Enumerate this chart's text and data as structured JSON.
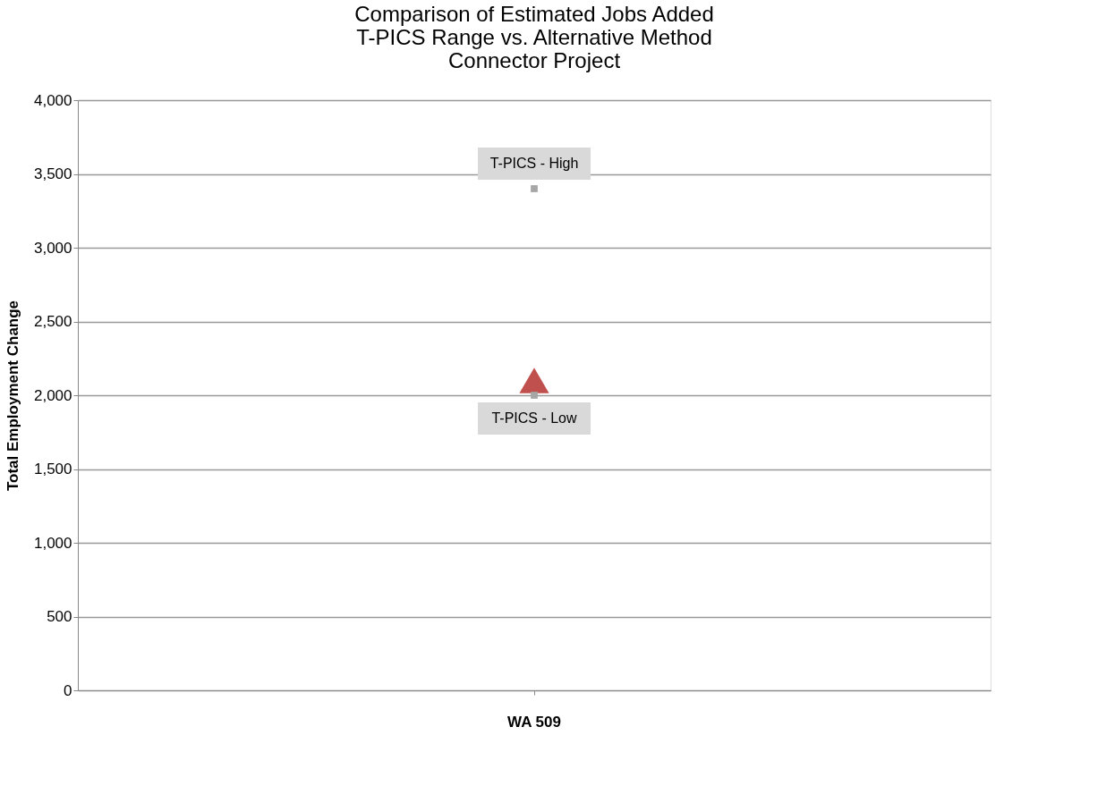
{
  "chart_data": {
    "type": "scatter",
    "title": [
      "Comparison of Estimated Jobs Added",
      "T-PICS Range vs. Alternative Method",
      "Connector Project"
    ],
    "ylabel": "Total Employment Change",
    "categories": [
      "WA 509"
    ],
    "series": [
      {
        "name": "T-PICS - High",
        "color": "#a6a6a6",
        "marker": "square",
        "values": [
          3400
        ]
      },
      {
        "color": "#c0504d",
        "marker": "triangle",
        "values": [
          2100
        ]
      },
      {
        "name": "T-PICS - Low",
        "color": "#a6a6a6",
        "marker": "square",
        "values": [
          2000
        ]
      }
    ],
    "ylim": [
      0,
      4000
    ],
    "yticks": [
      0,
      500,
      {
        "value": 1000,
        "label": "1,000"
      },
      {
        "value": 1500,
        "label": "1,500"
      },
      {
        "value": 2000,
        "label": "2,000"
      },
      {
        "value": 2500,
        "label": "2,500"
      },
      {
        "value": 3000,
        "label": "3,000"
      },
      {
        "value": 3500,
        "label": "3,500"
      },
      {
        "value": 4000,
        "label": "4,000"
      }
    ],
    "grid": "y"
  }
}
